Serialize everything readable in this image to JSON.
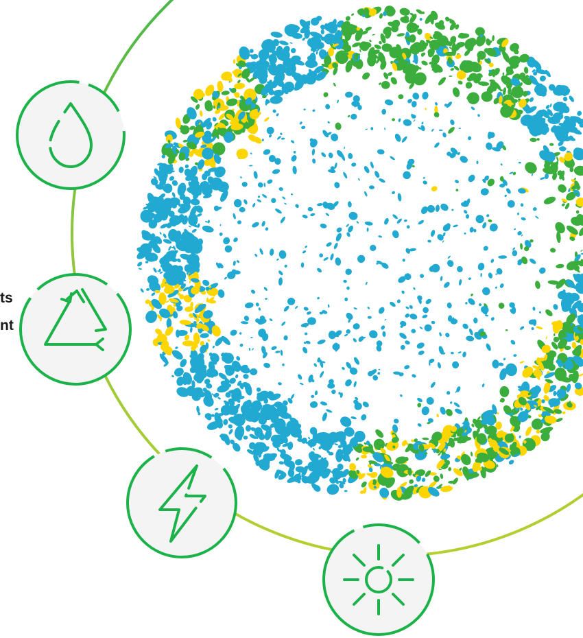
{
  "fragment_text": {
    "line1": "ts",
    "line2": "nt"
  },
  "colors": {
    "orbit_start": "#2fb34a",
    "orbit_end": "#b5cf2f",
    "icon_ring": "#1cb24a",
    "icon_fill": "#f4f4f4",
    "icon_stroke": "#1cb24a",
    "globe_green": "#3aad3c",
    "globe_blue": "#21a9d2",
    "globe_yellow": "#fdd500",
    "text": "#1a1a1a"
  },
  "icons": [
    {
      "name": "water-drop-icon"
    },
    {
      "name": "recycle-icon"
    },
    {
      "name": "lightning-bolt-icon"
    },
    {
      "name": "sun-icon"
    }
  ]
}
